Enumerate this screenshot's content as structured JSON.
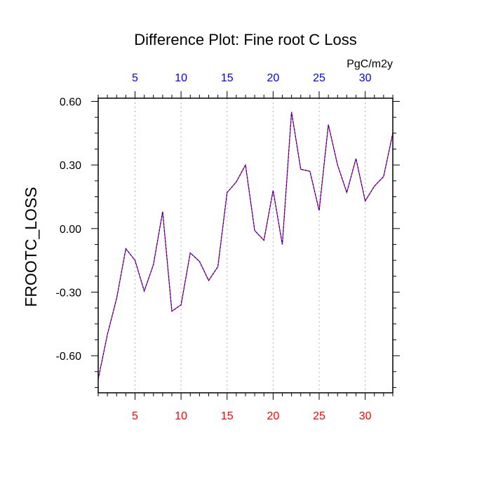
{
  "chart_data": {
    "type": "line",
    "title": "Difference Plot: Fine root C Loss",
    "ylabel": "FROOTC_LOSS",
    "units": "PgC/m2y",
    "xlim": [
      1,
      33
    ],
    "ylim": [
      -0.775,
      0.615
    ],
    "x_ticks": [
      5,
      10,
      15,
      20,
      25,
      30
    ],
    "y_ticks": [
      0.6,
      0.3,
      0.0,
      -0.3,
      -0.6
    ],
    "y_tick_labels": [
      "0.60",
      "0.30",
      "0.00",
      "-0.30",
      "-0.60"
    ],
    "x_tick_labels": [
      "5",
      "10",
      "15",
      "20",
      "25",
      "30"
    ],
    "colors": {
      "bottom_ticks": "#ff0000",
      "top_ticks": "#0000ff",
      "line_primary": "#ff0000",
      "line_overlay": "#0000ff",
      "grid": "#b0b0b0"
    },
    "grid": "vertical dotted",
    "series": [
      {
        "x": [
          1,
          2,
          3,
          4,
          5,
          6,
          7,
          8,
          9,
          10,
          11,
          12,
          13,
          14,
          15,
          16,
          17,
          18,
          19,
          20,
          21,
          22,
          23,
          24,
          25,
          26,
          27,
          28,
          29,
          30,
          31,
          32,
          33
        ],
        "values": [
          -0.71,
          -0.5,
          -0.33,
          -0.095,
          -0.15,
          -0.295,
          -0.17,
          0.08,
          -0.39,
          -0.36,
          -0.115,
          -0.155,
          -0.245,
          -0.18,
          0.17,
          0.22,
          0.3,
          -0.01,
          -0.055,
          0.18,
          -0.075,
          0.55,
          0.28,
          0.27,
          0.085,
          0.49,
          0.3,
          0.17,
          0.33,
          0.13,
          0.2,
          0.245,
          0.45
        ]
      }
    ]
  }
}
